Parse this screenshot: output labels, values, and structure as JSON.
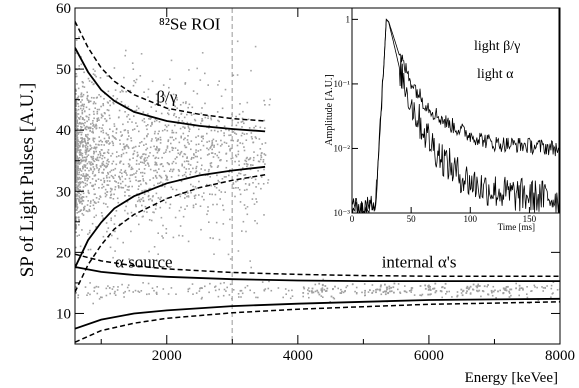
{
  "chart_data": [
    {
      "type": "scatter",
      "xlabel": "Energy [keVee]",
      "ylabel": "SP of Light Pulses [A.U.]",
      "xlim": [
        600,
        8000
      ],
      "ylim": [
        5,
        60
      ],
      "xticks": [
        2000,
        4000,
        6000,
        8000
      ],
      "yticks": [
        10,
        20,
        30,
        40,
        50,
        60
      ],
      "grid": false,
      "roi_line_x": 2998,
      "annotations": [
        {
          "text": "⁸²Se ROI",
          "x": 2350,
          "y": 56.5
        },
        {
          "text": "β/γ",
          "x": 2000,
          "y": 44.5
        },
        {
          "text": "α source",
          "x": 1650,
          "y": 17.5
        },
        {
          "text": "internal α's",
          "x": 5850,
          "y": 17.5
        }
      ],
      "series": [
        {
          "kind": "solid",
          "x": [
            600,
            800,
            1000,
            1200,
            1500,
            2000,
            2500,
            3000,
            3500
          ],
          "y": [
            53.5,
            49.5,
            46.6,
            44.8,
            43.0,
            41.5,
            40.7,
            40.2,
            39.8
          ]
        },
        {
          "kind": "dashed",
          "x": [
            600,
            800,
            1000,
            1200,
            1500,
            2000,
            2500,
            3000,
            3500
          ],
          "y": [
            57.8,
            53.5,
            50.2,
            48.0,
            45.8,
            43.6,
            42.6,
            41.9,
            41.5
          ]
        },
        {
          "kind": "solid",
          "x": [
            600,
            800,
            1000,
            1200,
            1500,
            2000,
            2500,
            3000,
            3500
          ],
          "y": [
            17.5,
            22.0,
            24.9,
            27.2,
            29.2,
            31.3,
            32.6,
            33.4,
            34.0
          ]
        },
        {
          "kind": "dashed",
          "x": [
            600,
            800,
            1000,
            1200,
            1500,
            2000,
            2500,
            3000,
            3500
          ],
          "y": [
            13.5,
            18.0,
            21.2,
            23.8,
            26.2,
            28.8,
            30.6,
            31.8,
            32.7
          ]
        },
        {
          "kind": "solid",
          "x": [
            600,
            1000,
            1500,
            2000,
            3000,
            4000,
            5000,
            6000,
            7000,
            8000
          ],
          "y": [
            17.6,
            16.8,
            16.3,
            16.0,
            15.6,
            15.4,
            15.3,
            15.3,
            15.3,
            15.3
          ]
        },
        {
          "kind": "dashed",
          "x": [
            600,
            1000,
            1500,
            2000,
            3000,
            4000,
            5000,
            6000,
            7000,
            8000
          ],
          "y": [
            19.7,
            18.6,
            17.8,
            17.3,
            16.7,
            16.4,
            16.2,
            16.1,
            16.1,
            16.1
          ]
        },
        {
          "kind": "solid",
          "x": [
            600,
            1000,
            1500,
            2000,
            3000,
            4000,
            5000,
            6000,
            7000,
            8000
          ],
          "y": [
            7.5,
            9.0,
            10.0,
            10.5,
            11.2,
            11.6,
            11.9,
            12.2,
            12.3,
            12.4
          ]
        },
        {
          "kind": "dashed",
          "x": [
            600,
            1000,
            1500,
            2000,
            3000,
            4000,
            5000,
            6000,
            7000,
            8000
          ],
          "y": [
            5.3,
            7.2,
            8.4,
            9.2,
            10.1,
            10.7,
            11.1,
            11.5,
            11.7,
            11.9
          ]
        }
      ],
      "scatter_clusters": [
        {
          "name": "beta-gamma band",
          "x_range": [
            600,
            3500
          ],
          "y_center": 35.5,
          "y_spread": 5.5,
          "count": 1700,
          "color": "#a0a0a0"
        },
        {
          "name": "alpha band",
          "x_range": [
            600,
            8000
          ],
          "y_center": 13.7,
          "y_spread": 0.8,
          "count": 240,
          "color": "#a0a0a0"
        },
        {
          "name": "internal alpha peaks",
          "x_centers": [
            4300,
            5300,
            6000,
            6600,
            7200
          ],
          "y_center": 14.0,
          "y_spread": 0.5,
          "count": 120,
          "color": "#a0a0a0"
        }
      ]
    },
    {
      "type": "line",
      "xlabel": "Time [ms]",
      "ylabel": "Amplitude [A.U.]",
      "xlim": [
        0,
        175
      ],
      "ylim": [
        0.001,
        1.5
      ],
      "yscale": "log",
      "xticks": [
        0,
        50,
        100,
        150
      ],
      "yticks": [
        "10⁻³",
        "10⁻²",
        "10⁻¹",
        "1"
      ],
      "grid": false,
      "legend": "top-right",
      "series": [
        {
          "name": "light β/γ",
          "x": [
            0,
            10,
            20,
            27,
            29,
            31,
            35,
            40,
            50,
            60,
            70,
            80,
            100,
            120,
            150,
            175
          ],
          "y": [
            0.0012,
            0.0012,
            0.0015,
            0.2,
            1.0,
            0.92,
            0.55,
            0.28,
            0.11,
            0.055,
            0.035,
            0.025,
            0.016,
            0.012,
            0.011,
            0.01
          ]
        },
        {
          "name": "light α",
          "x": [
            0,
            10,
            20,
            27,
            29,
            31,
            35,
            40,
            50,
            60,
            70,
            80,
            90,
            100,
            110,
            130,
            150,
            175
          ],
          "y": [
            0.0012,
            0.0012,
            0.0015,
            0.2,
            1.0,
            0.9,
            0.45,
            0.18,
            0.05,
            0.02,
            0.01,
            0.006,
            0.004,
            0.003,
            0.0025,
            0.002,
            0.0018,
            0.0017
          ]
        }
      ]
    }
  ]
}
